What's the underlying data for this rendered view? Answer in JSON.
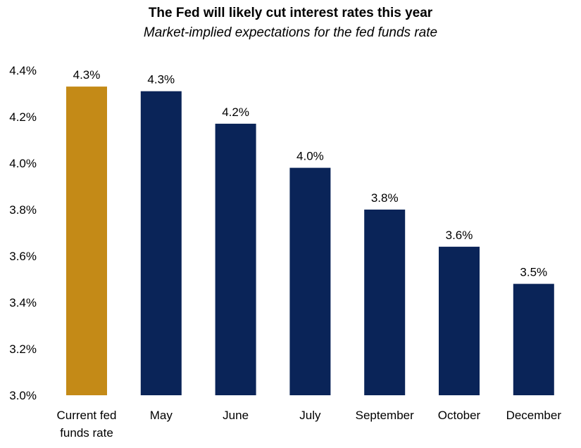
{
  "chart_data": {
    "type": "bar",
    "title": "The Fed will likely cut interest rates this year",
    "subtitle": "Market-implied expectations for the fed funds rate",
    "xlabel": "",
    "ylabel": "",
    "categories": [
      [
        "Current fed",
        "funds rate"
      ],
      [
        "May"
      ],
      [
        "June"
      ],
      [
        "July"
      ],
      [
        "September"
      ],
      [
        "October"
      ],
      [
        "December"
      ]
    ],
    "values": [
      4.33,
      4.31,
      4.17,
      3.98,
      3.8,
      3.64,
      3.48
    ],
    "data_labels": [
      "4.3%",
      "4.3%",
      "4.2%",
      "4.0%",
      "3.8%",
      "3.6%",
      "3.5%"
    ],
    "bar_colors": [
      "#C48A17",
      "#0A2458",
      "#0A2458",
      "#0A2458",
      "#0A2458",
      "#0A2458",
      "#0A2458"
    ],
    "ylim": [
      3.0,
      4.4
    ],
    "yticks": [
      3.0,
      3.2,
      3.4,
      3.6,
      3.8,
      4.0,
      4.2,
      4.4
    ],
    "ytick_labels": [
      "3.0%",
      "3.2%",
      "3.4%",
      "3.6%",
      "3.8%",
      "4.0%",
      "4.2%",
      "4.4%"
    ],
    "grid": false,
    "legend": "none"
  }
}
